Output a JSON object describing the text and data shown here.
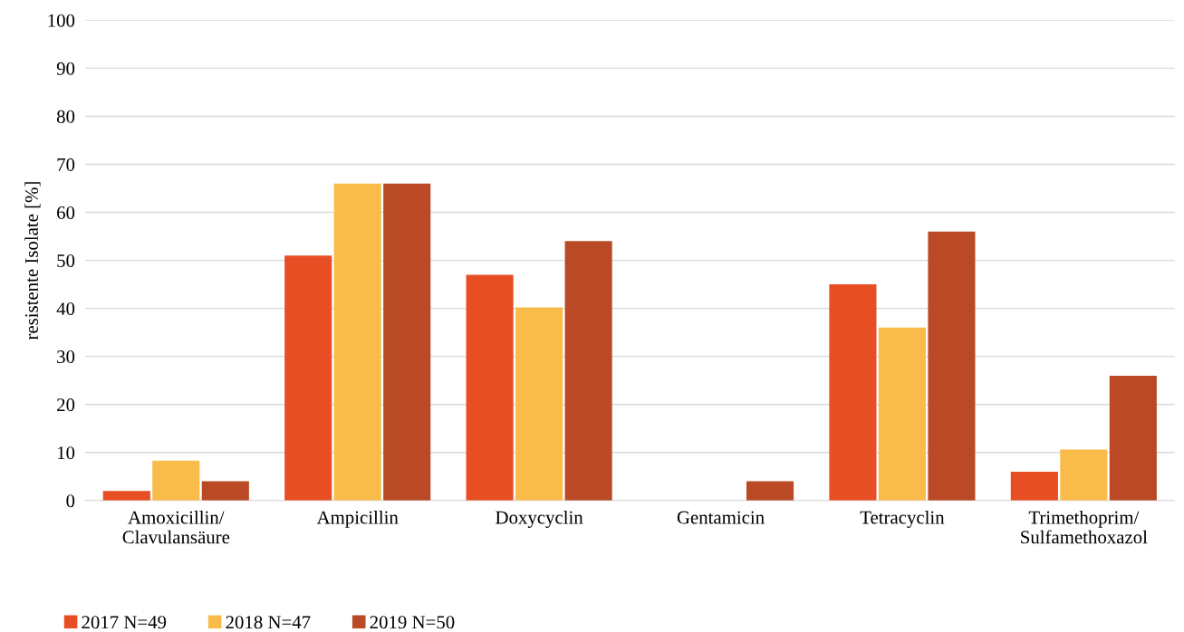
{
  "chart_data": {
    "type": "bar",
    "ylabel": "resistente Isolate [%]",
    "categories": [
      "Amoxicillin/\nClavulansäure",
      "Ampicillin",
      "Doxycyclin",
      "Gentamicin",
      "Tetracyclin",
      "Trimethoprim/\nSulfamethoxazol"
    ],
    "series": [
      {
        "name": "2017 N=49",
        "color": "#e84e24",
        "values": [
          2,
          51,
          47,
          0,
          45,
          6
        ]
      },
      {
        "name": "2018 N=47",
        "color": "#f9bc4a",
        "values": [
          8.3,
          66,
          40.2,
          0,
          36,
          10.6
        ]
      },
      {
        "name": "2019 N=50",
        "color": "#b94a25",
        "values": [
          4,
          66,
          54,
          4,
          56,
          26
        ]
      }
    ],
    "ylim": [
      0,
      100
    ],
    "yticks": [
      0,
      10,
      20,
      30,
      40,
      50,
      60,
      70,
      80,
      90,
      100
    ],
    "grid": "y",
    "legend": "bottom left"
  }
}
